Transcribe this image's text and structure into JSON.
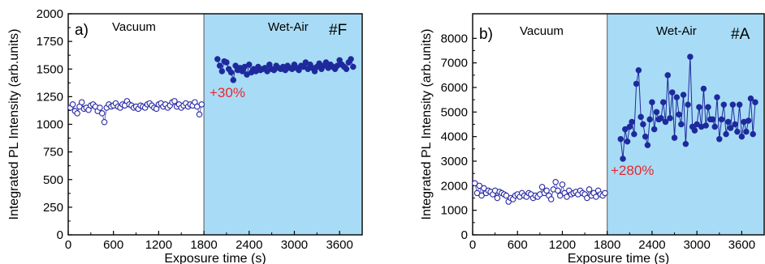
{
  "colors": {
    "wet_air_shade": "#a8dcf6",
    "vacuum_marker": "#2a2aa6",
    "wet_marker": "#1e2a9c",
    "annotation": "#e8262e",
    "axis": "#000000"
  },
  "chart_data": [
    {
      "type": "scatter",
      "panel_label": "a)",
      "sample_label": "#F",
      "region_labels": {
        "vacuum": "Vacuum",
        "wet_air": "Wet-Air"
      },
      "annotation": "+30%",
      "xlabel": "Exposure time (s)",
      "ylabel": "Integrated PL Intensity (arb.units)",
      "xlim": [
        0,
        3900
      ],
      "ylim": [
        0,
        2000
      ],
      "xticks": [
        "0",
        "600",
        "1200",
        "1800",
        "2400",
        "3000",
        "3600"
      ],
      "yticks": [
        "0",
        "250",
        "500",
        "750",
        "1000",
        "1250",
        "1500",
        "1750",
        "2000"
      ],
      "shaded_region_x": [
        1800,
        3900
      ],
      "series": [
        {
          "marker": "open-circle",
          "x": [
            30,
            60,
            90,
            120,
            150,
            180,
            210,
            240,
            270,
            300,
            330,
            360,
            390,
            420,
            450,
            480,
            510,
            540,
            570,
            600,
            630,
            660,
            690,
            720,
            750,
            780,
            810,
            840,
            870,
            900,
            930,
            960,
            990,
            1020,
            1050,
            1080,
            1110,
            1140,
            1170,
            1200,
            1230,
            1260,
            1290,
            1320,
            1350,
            1380,
            1410,
            1440,
            1470,
            1500,
            1530,
            1560,
            1590,
            1620,
            1650,
            1680,
            1710,
            1740,
            1770
          ],
          "y": [
            1150,
            1180,
            1120,
            1100,
            1160,
            1200,
            1140,
            1150,
            1130,
            1170,
            1180,
            1160,
            1120,
            1150,
            1100,
            1020,
            1150,
            1180,
            1160,
            1170,
            1190,
            1160,
            1150,
            1180,
            1170,
            1210,
            1180,
            1170,
            1150,
            1160,
            1140,
            1170,
            1160,
            1150,
            1180,
            1190,
            1170,
            1150,
            1140,
            1180,
            1190,
            1160,
            1180,
            1150,
            1170,
            1200,
            1210,
            1160,
            1180,
            1150,
            1170,
            1190,
            1160,
            1180,
            1170,
            1200,
            1160,
            1090,
            1180
          ]
        },
        {
          "marker": "filled-circle",
          "x": [
            1980,
            2010,
            2040,
            2070,
            2100,
            2130,
            2160,
            2190,
            2220,
            2250,
            2280,
            2310,
            2340,
            2370,
            2400,
            2430,
            2460,
            2490,
            2520,
            2550,
            2580,
            2610,
            2640,
            2670,
            2700,
            2730,
            2760,
            2790,
            2820,
            2850,
            2880,
            2910,
            2940,
            2970,
            3000,
            3030,
            3060,
            3090,
            3120,
            3150,
            3180,
            3210,
            3240,
            3270,
            3300,
            3330,
            3360,
            3390,
            3420,
            3450,
            3480,
            3510,
            3540,
            3570,
            3600,
            3630,
            3660,
            3690,
            3720,
            3750,
            3780
          ],
          "y": [
            1590,
            1530,
            1480,
            1570,
            1560,
            1500,
            1470,
            1400,
            1530,
            1490,
            1510,
            1480,
            1520,
            1450,
            1540,
            1470,
            1500,
            1480,
            1520,
            1490,
            1500,
            1510,
            1480,
            1540,
            1500,
            1490,
            1530,
            1510,
            1500,
            1520,
            1490,
            1530,
            1510,
            1500,
            1540,
            1510,
            1490,
            1530,
            1520,
            1560,
            1500,
            1540,
            1510,
            1480,
            1520,
            1550,
            1500,
            1530,
            1560,
            1510,
            1540,
            1520,
            1500,
            1530,
            1580,
            1540,
            1520,
            1500,
            1560,
            1590,
            1520
          ]
        }
      ]
    },
    {
      "type": "scatter",
      "panel_label": "b)",
      "sample_label": "#A",
      "region_labels": {
        "vacuum": "Vacuum",
        "wet_air": "Wet-Air"
      },
      "annotation": "+280%",
      "xlabel": "Exposure time (s)",
      "ylabel": "Integrated PL Intensity (arb.units)",
      "xlim": [
        0,
        3900
      ],
      "ylim": [
        0,
        9000
      ],
      "xticks": [
        "0",
        "600",
        "1200",
        "1800",
        "2400",
        "3000",
        "3600"
      ],
      "yticks": [
        "0",
        "1000",
        "2000",
        "3000",
        "4000",
        "5000",
        "6000",
        "7000",
        "8000"
      ],
      "shaded_region_x": [
        1800,
        3900
      ],
      "series": [
        {
          "marker": "open-circle",
          "x": [
            30,
            60,
            90,
            120,
            150,
            180,
            210,
            240,
            270,
            300,
            330,
            360,
            390,
            420,
            450,
            480,
            510,
            540,
            570,
            600,
            630,
            660,
            690,
            720,
            750,
            780,
            810,
            840,
            870,
            900,
            930,
            960,
            990,
            1020,
            1050,
            1080,
            1110,
            1140,
            1170,
            1200,
            1230,
            1260,
            1290,
            1320,
            1350,
            1380,
            1410,
            1440,
            1470,
            1500,
            1530,
            1560,
            1590,
            1620,
            1650,
            1680,
            1710,
            1740,
            1770
          ],
          "y": [
            2100,
            1700,
            2000,
            1600,
            1900,
            1700,
            1800,
            1750,
            1650,
            1800,
            1500,
            1750,
            1700,
            1650,
            1600,
            1350,
            1500,
            1450,
            1600,
            1650,
            1550,
            1700,
            1600,
            1550,
            1700,
            1650,
            1500,
            1600,
            1550,
            1650,
            1950,
            1700,
            1800,
            1600,
            1450,
            1850,
            2150,
            1800,
            1600,
            2050,
            1700,
            1550,
            1800,
            1650,
            1700,
            1750,
            1650,
            1800,
            1700,
            1650,
            1500,
            1850,
            1600,
            1700,
            1550,
            1800,
            1650,
            1600,
            1700
          ]
        },
        {
          "marker": "filled-circle",
          "x": [
            1980,
            2010,
            2040,
            2070,
            2100,
            2130,
            2160,
            2190,
            2220,
            2250,
            2280,
            2310,
            2340,
            2370,
            2400,
            2430,
            2460,
            2490,
            2520,
            2550,
            2580,
            2610,
            2640,
            2670,
            2700,
            2730,
            2760,
            2790,
            2820,
            2850,
            2880,
            2910,
            2940,
            2970,
            3000,
            3030,
            3060,
            3090,
            3120,
            3150,
            3180,
            3210,
            3240,
            3270,
            3300,
            3330,
            3360,
            3390,
            3420,
            3450,
            3480,
            3510,
            3540,
            3570,
            3600,
            3630,
            3660,
            3690,
            3720,
            3750,
            3780
          ],
          "y": [
            3900,
            3100,
            4300,
            3800,
            4400,
            4600,
            4100,
            6150,
            6700,
            4800,
            4500,
            4000,
            3650,
            4700,
            5400,
            4300,
            5000,
            4700,
            4750,
            5400,
            4600,
            6500,
            4750,
            5800,
            3950,
            5600,
            4900,
            4500,
            5700,
            3700,
            5300,
            7250,
            4400,
            4250,
            4500,
            5200,
            4400,
            5950,
            4450,
            5200,
            4700,
            4700,
            4400,
            5600,
            3900,
            4700,
            5300,
            4100,
            4600,
            4350,
            5300,
            4500,
            4200,
            5300,
            4000,
            4600,
            4200,
            4650,
            5550,
            4100,
            5400
          ]
        }
      ]
    }
  ]
}
